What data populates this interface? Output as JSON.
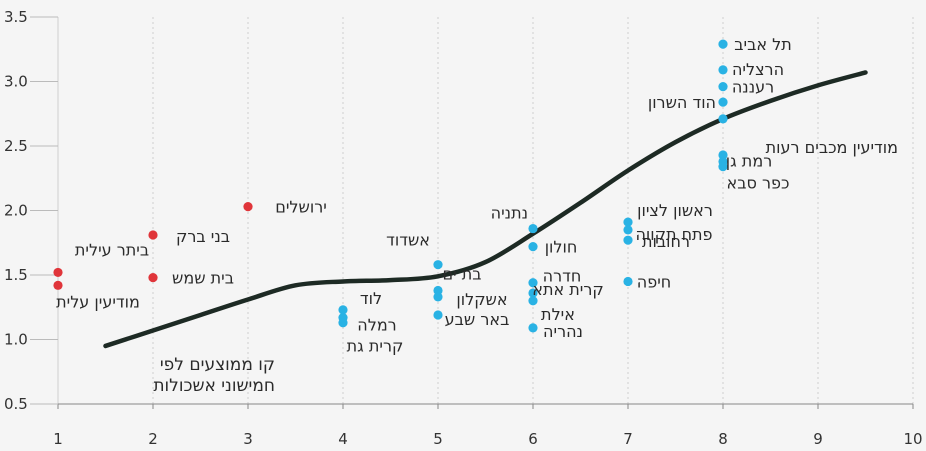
{
  "chart_data": {
    "type": "scatter",
    "title": "",
    "xlabel": "",
    "ylabel": "",
    "xlim": [
      1,
      10
    ],
    "ylim": [
      0.5,
      3.5
    ],
    "x_ticks": [
      1,
      2,
      3,
      4,
      5,
      6,
      7,
      8,
      9,
      10
    ],
    "y_ticks": [
      "0.5",
      "1.0",
      "1.5",
      "2.0",
      "2.5",
      "3.0",
      "3.5"
    ],
    "grid": "vertical-dashed",
    "colors": {
      "red": "#e0353a",
      "blue": "#29b2e4",
      "curve": "#1d2a24",
      "grid": "#cfcfcf",
      "axis": "#888888"
    },
    "trend_label_lines": [
      "קו ממוצעים לפי",
      "חמישוני אשכולות"
    ],
    "trend_line": {
      "x": [
        1.5,
        2,
        2.5,
        3,
        3.5,
        4,
        4.5,
        5,
        5.5,
        6,
        6.5,
        7,
        7.5,
        8,
        8.5,
        9,
        9.5
      ],
      "y": [
        0.95,
        1.07,
        1.19,
        1.31,
        1.42,
        1.45,
        1.46,
        1.49,
        1.6,
        1.82,
        2.06,
        2.31,
        2.53,
        2.71,
        2.85,
        2.97,
        3.07
      ]
    },
    "points": [
      {
        "x": 1,
        "y": 1.52,
        "label": "ביתר עילית",
        "color": "red"
      },
      {
        "x": 1,
        "y": 1.42,
        "label": "מודיעין עלית",
        "color": "red"
      },
      {
        "x": 2,
        "y": 1.81,
        "label": "בני ברק",
        "color": "red"
      },
      {
        "x": 2,
        "y": 1.48,
        "label": "בית שמש",
        "color": "red"
      },
      {
        "x": 3,
        "y": 2.03,
        "label": "ירושלים",
        "color": "red"
      },
      {
        "x": 4,
        "y": 1.23,
        "label": "לוד",
        "color": "blue"
      },
      {
        "x": 4,
        "y": 1.17,
        "label": "רמלה",
        "color": "blue"
      },
      {
        "x": 4,
        "y": 1.13,
        "label": "קרית גת",
        "color": "blue"
      },
      {
        "x": 5,
        "y": 1.58,
        "label": "אשדוד",
        "color": "blue"
      },
      {
        "x": 5,
        "y": 1.38,
        "label": "בת ים",
        "color": "blue"
      },
      {
        "x": 5,
        "y": 1.33,
        "label": "אשקלון",
        "color": "blue"
      },
      {
        "x": 5,
        "y": 1.19,
        "label": "באר שבע",
        "color": "blue"
      },
      {
        "x": 6,
        "y": 1.86,
        "label": "נתניה",
        "color": "blue"
      },
      {
        "x": 6,
        "y": 1.72,
        "label": "חולון",
        "color": "blue"
      },
      {
        "x": 6,
        "y": 1.44,
        "label": "חדרה",
        "color": "blue"
      },
      {
        "x": 6,
        "y": 1.36,
        "label": "קרית אתא",
        "color": "blue"
      },
      {
        "x": 6,
        "y": 1.3,
        "label": "אילת",
        "color": "blue"
      },
      {
        "x": 6,
        "y": 1.09,
        "label": "נהריה",
        "color": "blue"
      },
      {
        "x": 7,
        "y": 1.91,
        "label": "ראשון לציון",
        "color": "blue"
      },
      {
        "x": 7,
        "y": 1.85,
        "label": "פתח תקווה",
        "color": "blue"
      },
      {
        "x": 7,
        "y": 1.77,
        "label": "רחובות",
        "color": "blue"
      },
      {
        "x": 7,
        "y": 1.45,
        "label": "חיפה",
        "color": "blue"
      },
      {
        "x": 8,
        "y": 3.29,
        "label": "תל אביב",
        "color": "blue"
      },
      {
        "x": 8,
        "y": 3.09,
        "label": "הרצליה",
        "color": "blue"
      },
      {
        "x": 8,
        "y": 2.96,
        "label": "רעננה",
        "color": "blue"
      },
      {
        "x": 8,
        "y": 2.84,
        "label": "הוד השרון",
        "color": "blue"
      },
      {
        "x": 8,
        "y": 2.71,
        "label": "",
        "color": "blue"
      },
      {
        "x": 8,
        "y": 2.43,
        "label": "מודיעין מכבים רעות",
        "color": "blue"
      },
      {
        "x": 8,
        "y": 2.38,
        "label": "רמת גן",
        "color": "blue"
      },
      {
        "x": 8,
        "y": 2.34,
        "label": "כפר סבא",
        "color": "blue"
      }
    ]
  }
}
